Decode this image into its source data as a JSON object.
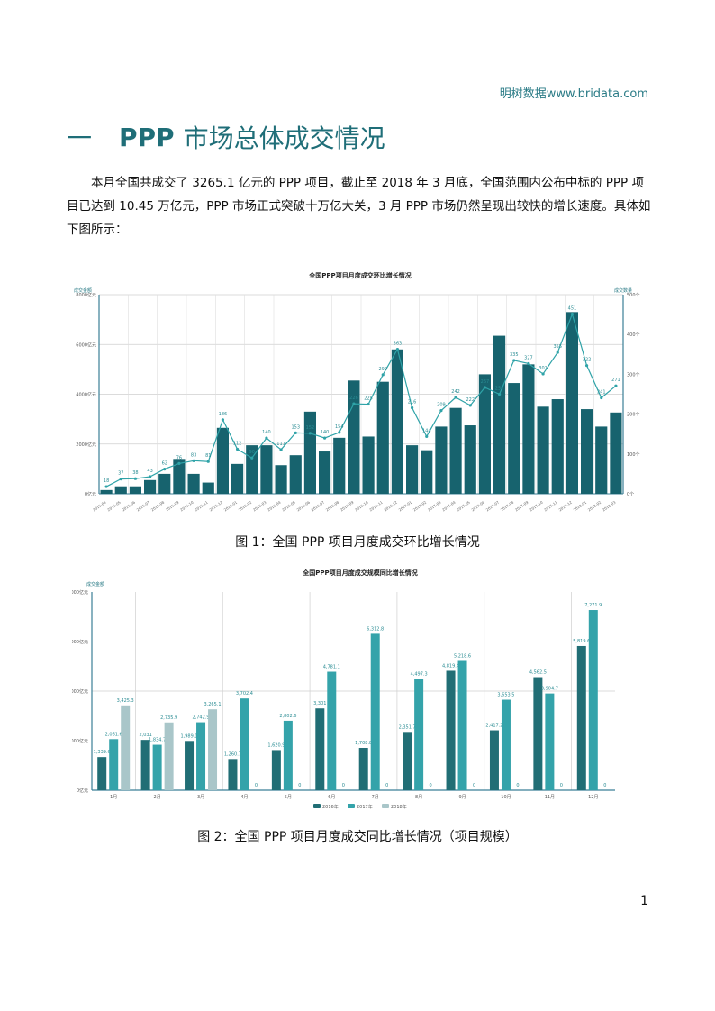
{
  "header": {
    "brand": "明树数据www.bridata.com"
  },
  "section": {
    "number": "一",
    "title_ppp": "PPP",
    "title_rest": "市场总体成交情况"
  },
  "paragraph": "本月全国共成交了 3265.1 亿元的 PPP 项目，截止至 2018 年 3 月底，全国范围内公布中标的 PPP 项目已达到 10.45 万亿元，PPP 市场正式突破十万亿大关，3 月 PPP 市场仍然呈现出较快的增长速度。具体如下图所示：",
  "figure1": {
    "caption": "图 1：全国 PPP 项目月度成交环比增长情况"
  },
  "figure2": {
    "caption": "图 2：全国 PPP 项目月度成交同比增长情况（项目规模）"
  },
  "page_number": "1",
  "colors": {
    "bar_dark": "#17636e",
    "line": "#2fa3a8",
    "bar_2016": "#216e75",
    "bar_2017": "#34a3aa",
    "bar_2018": "#a9c6c9",
    "accent": "#1f6e78"
  },
  "chart_data": [
    {
      "type": "bar+line",
      "title": "全国PPP项目月度成交环比增长情况",
      "left_axis_label": "成交金额",
      "right_axis_label": "成交数量",
      "left_ticks": [
        "0亿元",
        "2000亿元",
        "4000亿元",
        "6000亿元",
        "8000亿元"
      ],
      "right_ticks": [
        "0个",
        "100个",
        "200个",
        "300个",
        "400个",
        "500个"
      ],
      "ylim_left": [
        0,
        8000
      ],
      "ylim_right": [
        0,
        500
      ],
      "categories": [
        "2015-04",
        "2015-05",
        "2015-06",
        "2015-07",
        "2015-08",
        "2015-09",
        "2015-10",
        "2015-11",
        "2015-12",
        "2016-01",
        "2016-02",
        "2016-03",
        "2016-04",
        "2016-05",
        "2016-06",
        "2016-07",
        "2016-08",
        "2016-09",
        "2016-10",
        "2016-11",
        "2016-12",
        "2017-01",
        "2017-02",
        "2017-03",
        "2017-04",
        "2017-05",
        "2017-06",
        "2017-07",
        "2017-08",
        "2017-09",
        "2017-10",
        "2017-11",
        "2017-12",
        "2018-01",
        "2018-02",
        "2018-03"
      ],
      "series": [
        {
          "name": "成交金额(亿元)",
          "kind": "bar",
          "values": [
            150,
            300,
            300,
            550,
            800,
            1400,
            800,
            450,
            2650,
            1200,
            1950,
            1950,
            1150,
            1550,
            3300,
            1700,
            2250,
            4550,
            2300,
            4500,
            5800,
            1950,
            1750,
            2700,
            3450,
            2750,
            4800,
            6350,
            4450,
            5200,
            3500,
            3800,
            7300,
            3400,
            2700,
            3265.1
          ]
        },
        {
          "name": "成交数量(个)",
          "kind": "line",
          "values": [
            18,
            37,
            38,
            43,
            62,
            76,
            83,
            81,
            186,
            112,
            90,
            140,
            111,
            153,
            152,
            140,
            154,
            226,
            225,
            299,
            363,
            216,
            144,
            209,
            242,
            222,
            267,
            250,
            335,
            327,
            301,
            355,
            451,
            322,
            241,
            271
          ]
        }
      ],
      "grid": true
    },
    {
      "type": "bar",
      "title": "全国PPP项目月度成交规模同比增长情况",
      "ylabel": "成交金额",
      "y_ticks": [
        "0亿元",
        "2000亿元",
        "4000亿元",
        "6000亿元",
        "8000亿元"
      ],
      "ylim": [
        0,
        8000
      ],
      "categories": [
        "1月",
        "2月",
        "3月",
        "4月",
        "5月",
        "6月",
        "7月",
        "8月",
        "9月",
        "10月",
        "11月",
        "12月"
      ],
      "series": [
        {
          "name": "2016年",
          "values": [
            1339.6,
            2031,
            1989.1,
            1260.7,
            1620.9,
            3301,
            1708.8,
            2351.7,
            4819.4,
            2417.2,
            4562.5,
            5819.6
          ]
        },
        {
          "name": "2017年",
          "values": [
            2061.6,
            1834.7,
            2742.9,
            3702.4,
            2802.6,
            4781.1,
            6312.8,
            4497.3,
            5218.6,
            3653.5,
            3904.7,
            7271.9
          ]
        },
        {
          "name": "2018年",
          "values": [
            3425.3,
            2735.9,
            3265.1,
            0,
            0,
            0,
            0,
            0,
            0,
            0,
            0,
            0
          ]
        }
      ],
      "legend": [
        "2016年",
        "2017年",
        "2018年"
      ],
      "legend_position": "bottom",
      "grid": true
    }
  ]
}
